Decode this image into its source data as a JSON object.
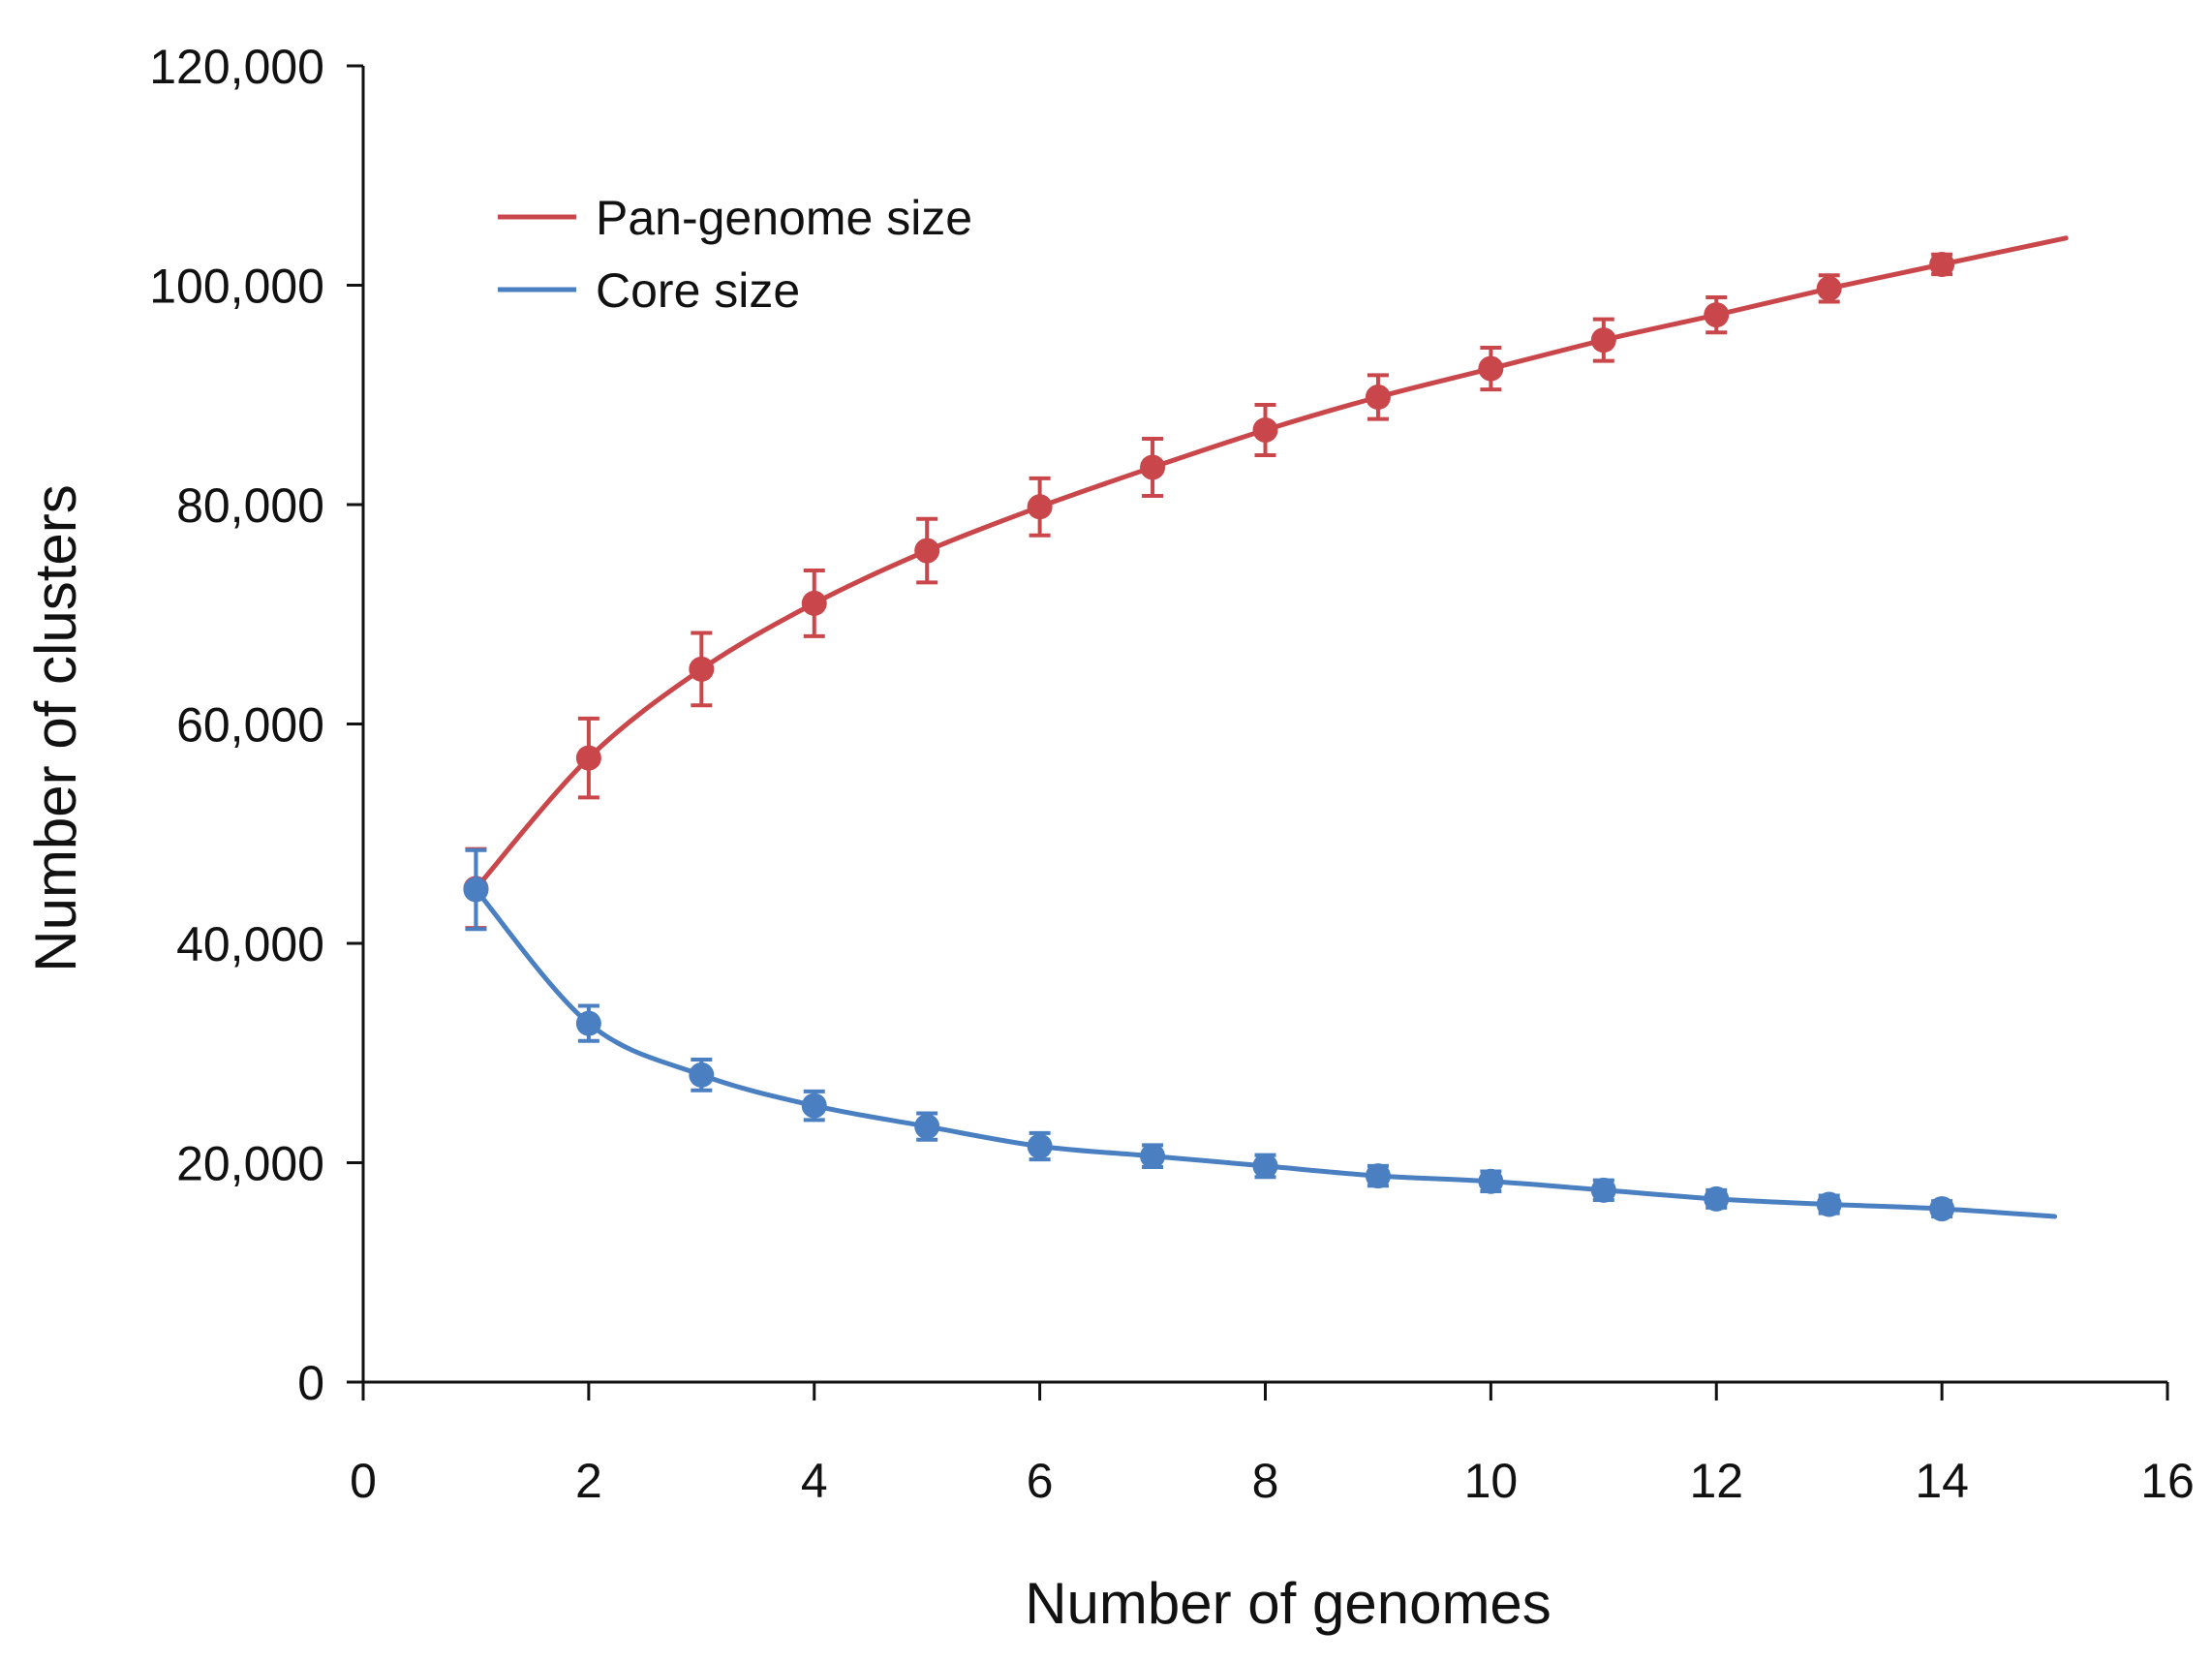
{
  "chart_data": {
    "type": "line",
    "title": "",
    "xlabel": "Number of genomes",
    "ylabel": "Number of clusters",
    "xlim": [
      0,
      16
    ],
    "ylim": [
      0,
      120000
    ],
    "xticks": [
      0,
      2,
      4,
      6,
      8,
      10,
      12,
      14,
      16
    ],
    "xtick_labels": [
      "0",
      "2",
      "4",
      "6",
      "8",
      "10",
      "12",
      "14",
      "16"
    ],
    "yticks": [
      0,
      20000,
      40000,
      60000,
      80000,
      100000,
      120000
    ],
    "ytick_labels": [
      "0",
      "20,000",
      "40,000",
      "60,000",
      "80,000",
      "100,000",
      "120,000"
    ],
    "grid": false,
    "legend_position": "top-left",
    "series": [
      {
        "name": "Pan-genome size",
        "color": "#c9474b",
        "x": [
          1,
          2,
          3,
          4,
          5,
          6,
          7,
          8,
          9,
          10,
          11,
          12,
          13,
          14
        ],
        "values": [
          45000,
          56900,
          65000,
          71000,
          75800,
          79800,
          83400,
          86800,
          89800,
          92400,
          95000,
          97300,
          99700,
          101900
        ],
        "error": [
          3600,
          3600,
          3300,
          3000,
          2900,
          2600,
          2600,
          2300,
          2000,
          1900,
          1900,
          1600,
          1200,
          900
        ],
        "fit_end": {
          "x": 15.1,
          "value": 104300
        }
      },
      {
        "name": "Core size",
        "color": "#4a7fc1",
        "x": [
          1,
          2,
          3,
          4,
          5,
          6,
          7,
          8,
          9,
          10,
          11,
          12,
          13,
          14
        ],
        "values": [
          44900,
          32700,
          28000,
          25200,
          23300,
          21500,
          20600,
          19700,
          18800,
          18300,
          17500,
          16700,
          16200,
          15800
        ],
        "error": [
          3600,
          1600,
          1400,
          1300,
          1200,
          1200,
          1000,
          1000,
          900,
          900,
          900,
          800,
          800,
          700
        ],
        "fit_end": {
          "x": 15.0,
          "value": 15100
        }
      }
    ]
  }
}
